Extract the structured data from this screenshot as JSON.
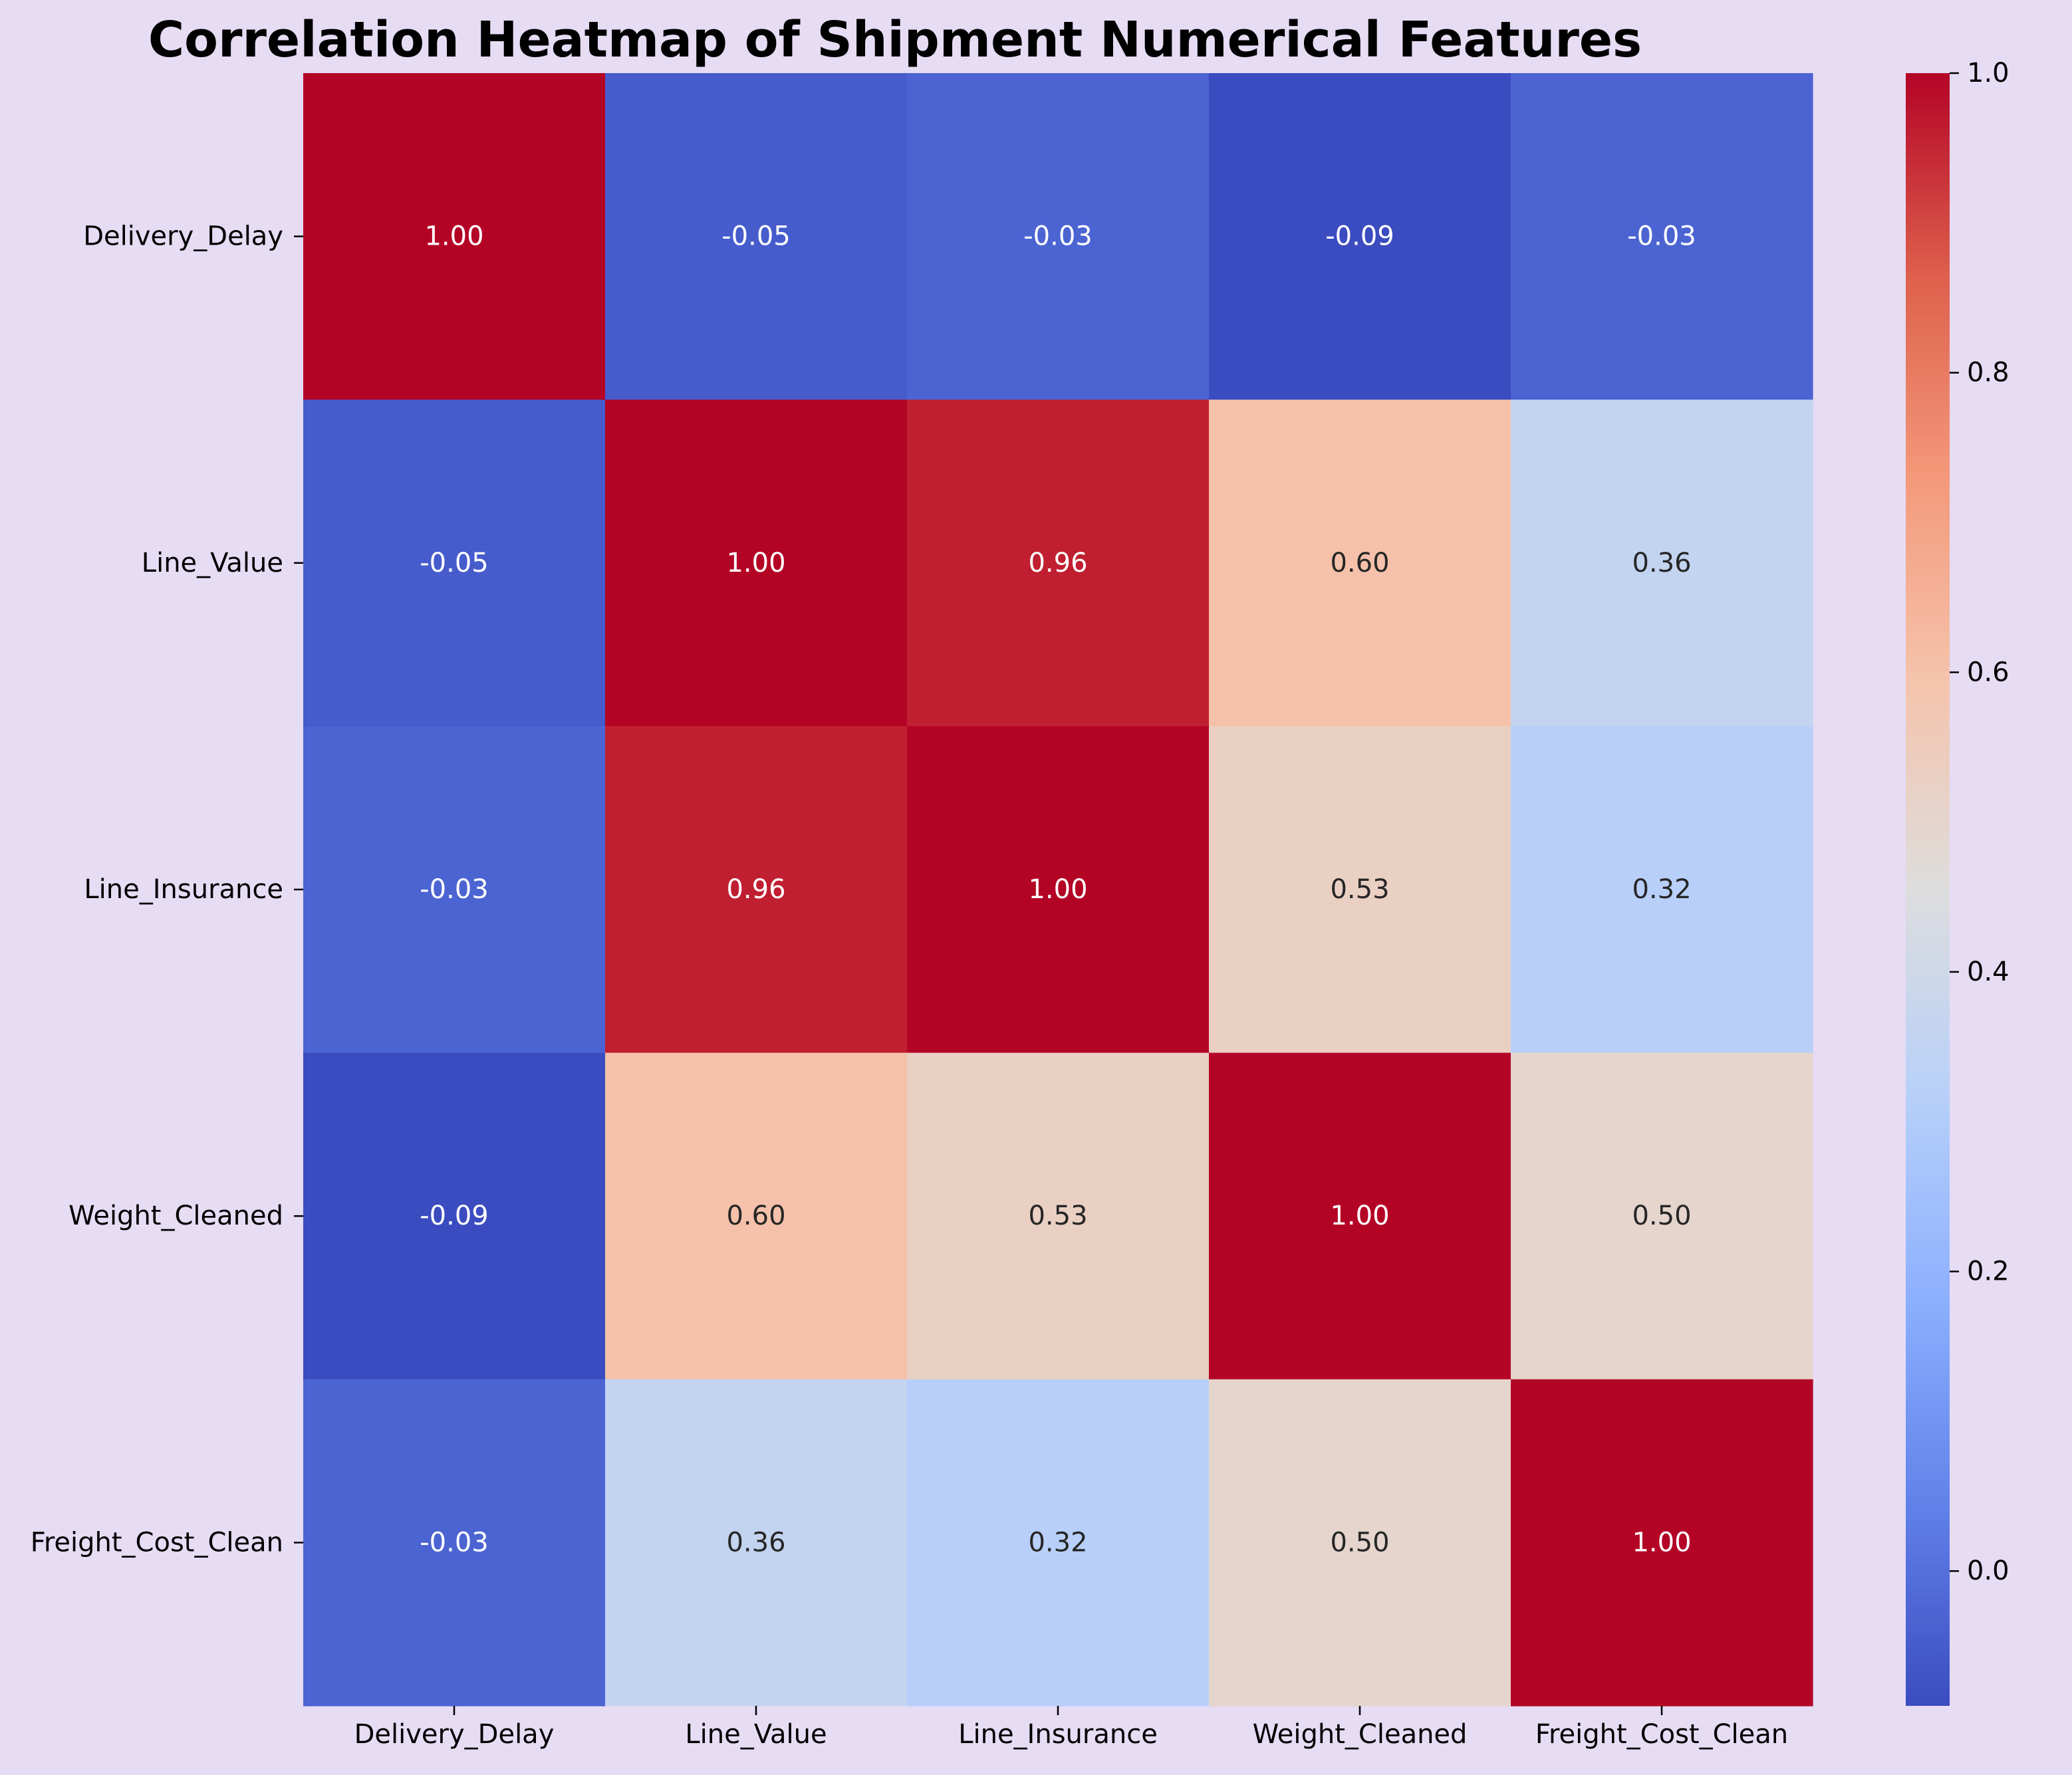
{
  "chart_data": {
    "type": "heatmap",
    "title": "Correlation Heatmap of Shipment Numerical Features",
    "xlabel": "",
    "ylabel": "",
    "row_labels": [
      "Delivery_Delay",
      "Line_Value",
      "Line_Insurance",
      "Weight_Cleaned",
      "Freight_Cost_Clean"
    ],
    "col_labels": [
      "Delivery_Delay",
      "Line_Value",
      "Line_Insurance",
      "Weight_Cleaned",
      "Freight_Cost_Clean"
    ],
    "values": [
      [
        1.0,
        -0.05,
        -0.03,
        -0.09,
        -0.03
      ],
      [
        -0.05,
        1.0,
        0.96,
        0.6,
        0.36
      ],
      [
        -0.03,
        0.96,
        1.0,
        0.53,
        0.32
      ],
      [
        -0.09,
        0.6,
        0.53,
        1.0,
        0.5
      ],
      [
        -0.03,
        0.36,
        0.32,
        0.5,
        1.0
      ]
    ],
    "annotation_format": "0.00",
    "colormap": "coolwarm",
    "color_range": [
      -0.09,
      1.0
    ],
    "colorbar_ticks": [
      "0.0",
      "0.2",
      "0.4",
      "0.6",
      "0.8",
      "1.0"
    ],
    "colorbar_tick_values": [
      0.0,
      0.2,
      0.4,
      0.6,
      0.8,
      1.0
    ],
    "grid": false,
    "legend": "colorbar-right"
  },
  "colors": {
    "background": "#e6dcf4",
    "text_dark": "#262626",
    "text_light": "#ffffff"
  }
}
